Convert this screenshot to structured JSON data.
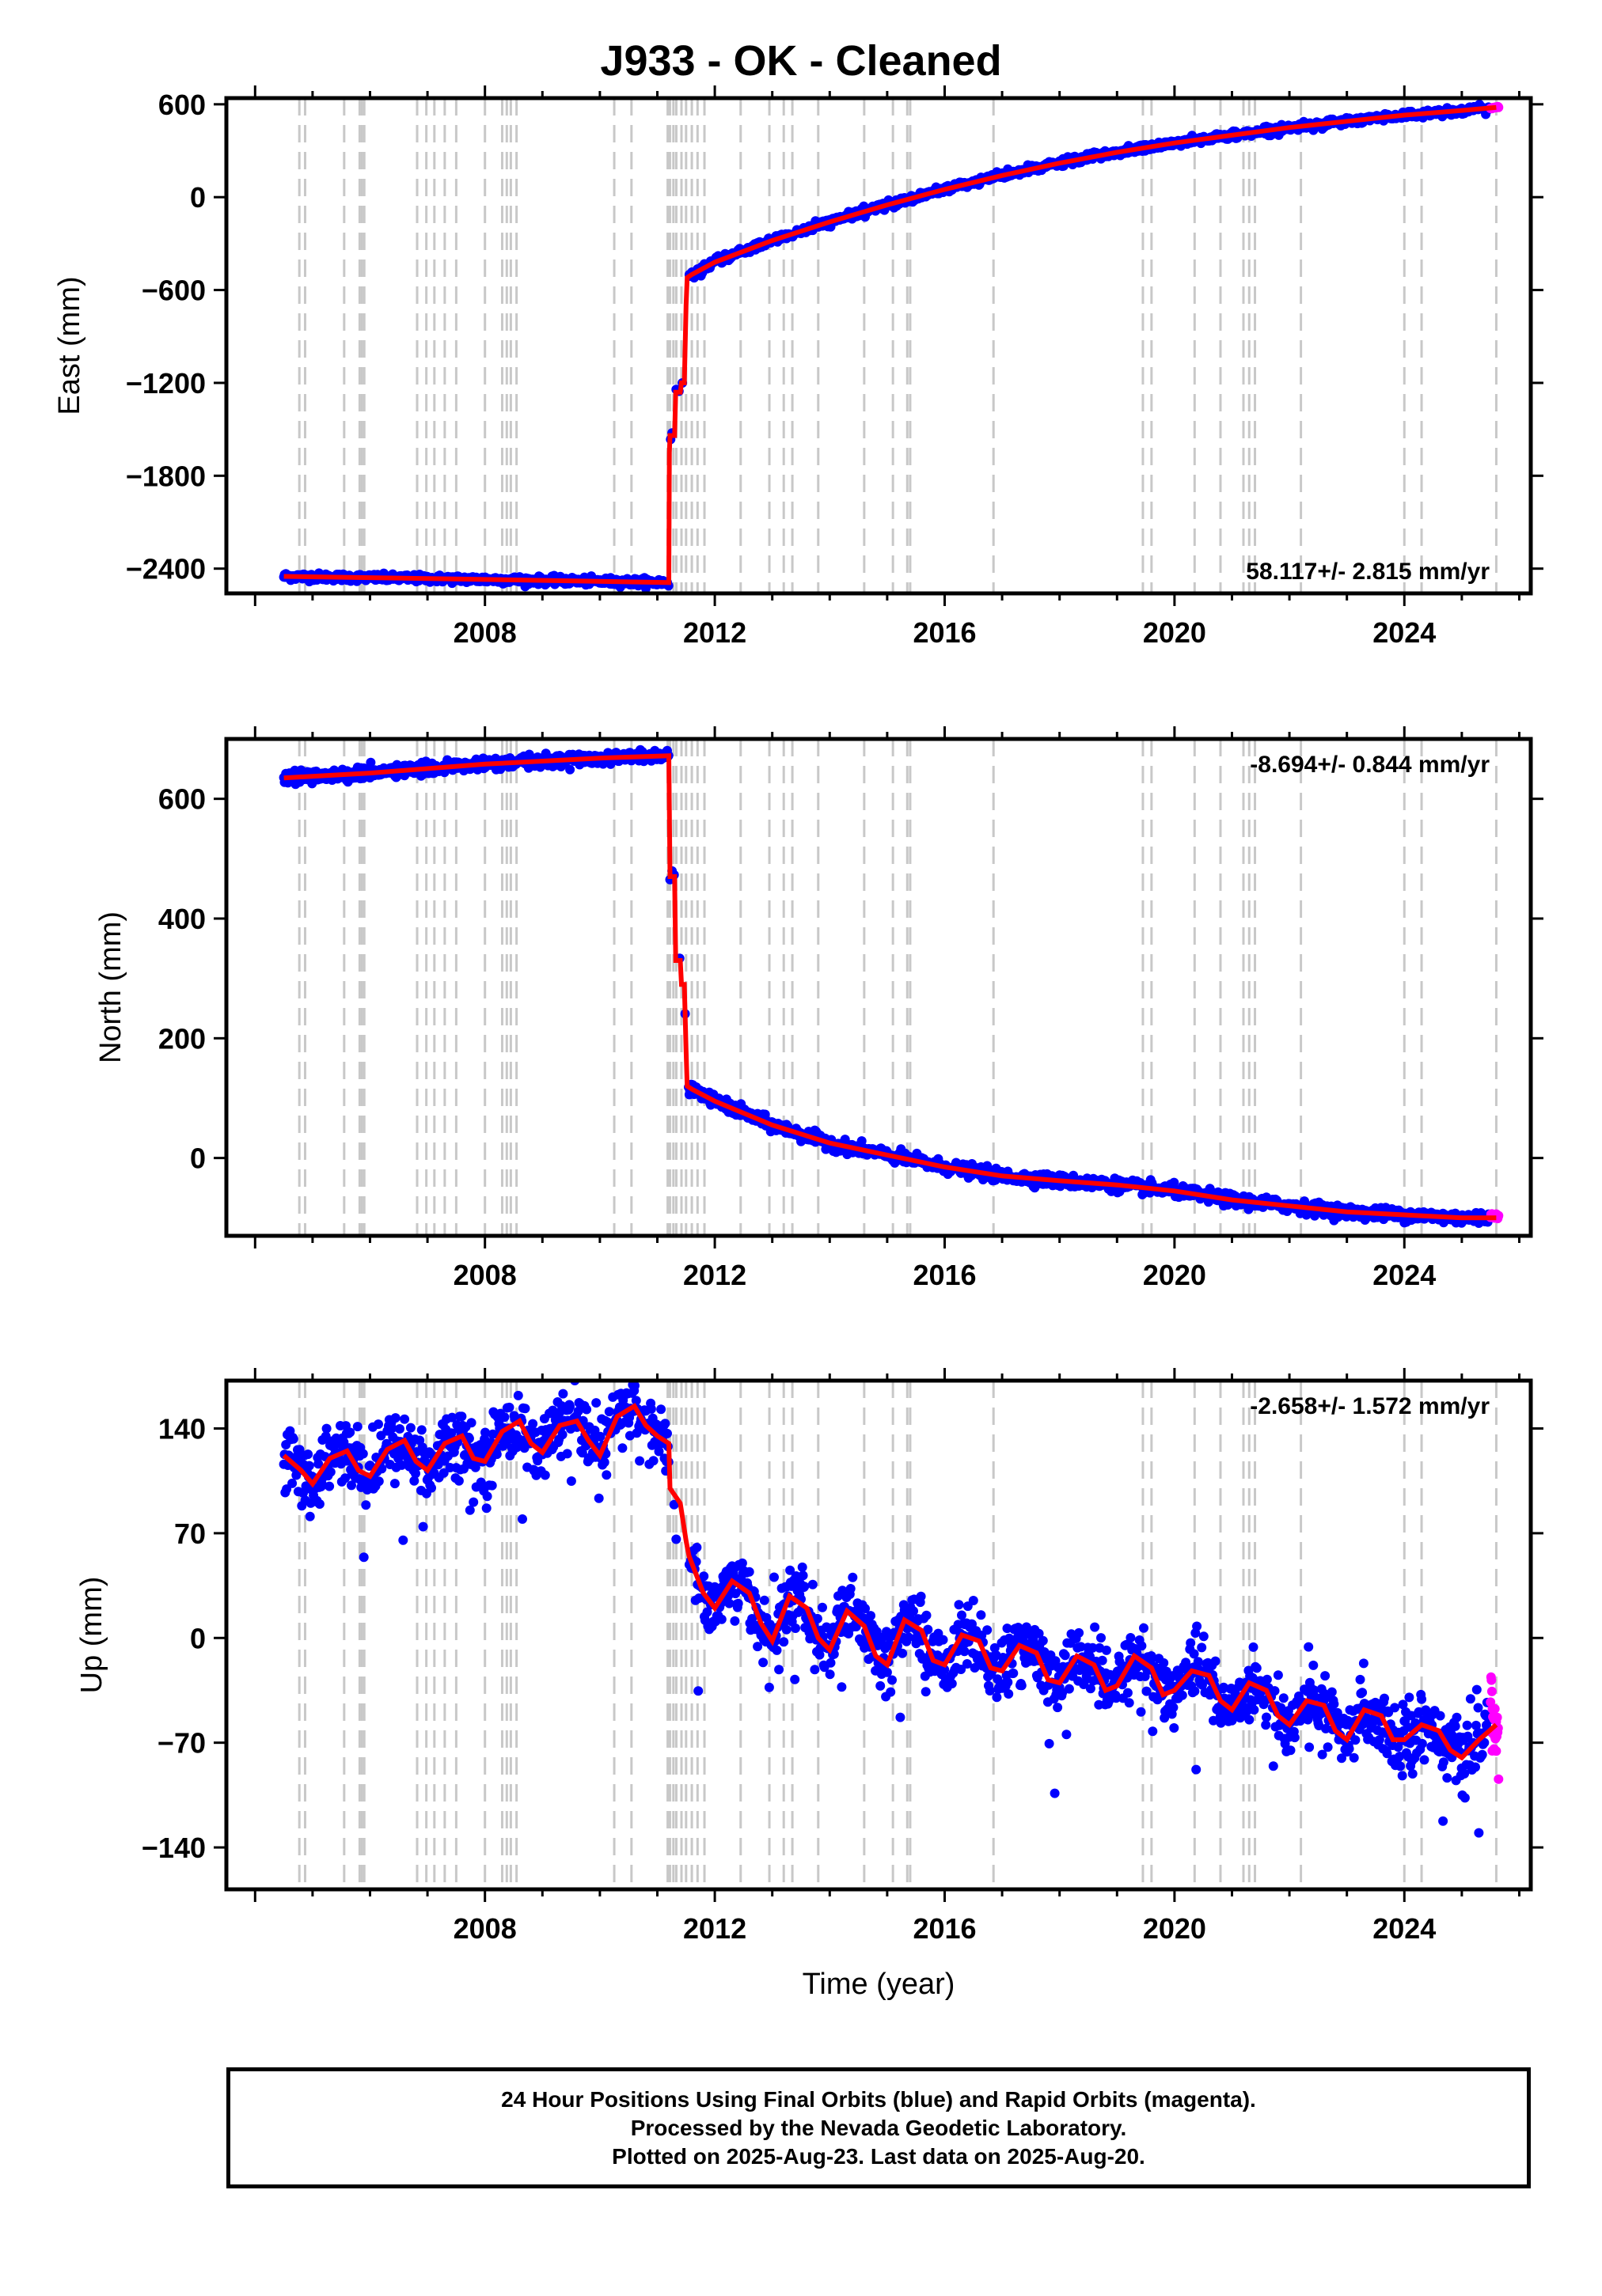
{
  "title": "J933  - OK - Cleaned",
  "colors": {
    "final_orbits": "#0000ff",
    "rapid_orbits": "#ff00ff",
    "model": "#ff0000",
    "events": "#c8c8c8"
  },
  "chart_data": [
    {
      "type": "scatter",
      "ylabel": "East (mm)",
      "xlabel": "",
      "xlim": [
        2003.5,
        2026.2
      ],
      "ylim": [
        -2560,
        640
      ],
      "yticks": [
        -2400,
        -1800,
        -1200,
        -600,
        0,
        600
      ],
      "xticks": [
        2008,
        2012,
        2016,
        2020,
        2024
      ],
      "rate": "58.117+/- 2.815 mm/yr",
      "series": [
        {
          "role": "model",
          "x": [
            2004.5,
            2008.0,
            2011.2,
            2011.21,
            2011.22,
            2011.3,
            2011.32,
            2011.4,
            2011.42,
            2011.47,
            2011.5,
            2011.52,
            2011.6,
            2012.0,
            2013.0,
            2014.0,
            2015.0,
            2016.0,
            2017.0,
            2018.0,
            2019.0,
            2020.0,
            2021.0,
            2022.0,
            2023.0,
            2024.0,
            2025.0,
            2025.6
          ],
          "y": [
            -2450,
            -2470,
            -2490,
            -1650,
            -1540,
            -1540,
            -1260,
            -1260,
            -1200,
            -1200,
            -700,
            -520,
            -500,
            -420,
            -280,
            -160,
            -50,
            50,
            140,
            220,
            290,
            350,
            400,
            450,
            490,
            530,
            560,
            580
          ]
        },
        {
          "role": "rapid",
          "x": [
            2025.5,
            2025.55,
            2025.6
          ],
          "y": [
            575,
            578,
            582
          ]
        }
      ]
    },
    {
      "type": "scatter",
      "ylabel": "North (mm)",
      "xlabel": "",
      "xlim": [
        2003.5,
        2026.2
      ],
      "ylim": [
        -130,
        700
      ],
      "yticks": [
        0,
        200,
        400,
        600
      ],
      "xticks": [
        2008,
        2012,
        2016,
        2020,
        2024
      ],
      "rate": "-8.694+/- 0.844 mm/yr",
      "series": [
        {
          "role": "model",
          "x": [
            2004.5,
            2006.0,
            2008.0,
            2010.0,
            2011.2,
            2011.21,
            2011.22,
            2011.3,
            2011.32,
            2011.4,
            2011.42,
            2011.47,
            2011.5,
            2011.52,
            2011.6,
            2012.0,
            2013.0,
            2014.0,
            2015.0,
            2016.0,
            2017.0,
            2018.0,
            2019.0,
            2020.0,
            2021.0,
            2022.0,
            2023.0,
            2024.0,
            2025.0,
            2025.6
          ],
          "y": [
            635,
            643,
            658,
            668,
            672,
            580,
            470,
            470,
            330,
            330,
            290,
            290,
            180,
            120,
            115,
            95,
            55,
            25,
            5,
            -15,
            -30,
            -38,
            -45,
            -55,
            -70,
            -80,
            -90,
            -95,
            -100,
            -100
          ]
        },
        {
          "role": "rapid",
          "x": [
            2025.5,
            2025.55,
            2025.6
          ],
          "y": [
            -95,
            -98,
            -96
          ]
        }
      ]
    },
    {
      "type": "scatter",
      "ylabel": "Up (mm)",
      "xlabel": "Time (year)",
      "xlim": [
        2003.5,
        2026.2
      ],
      "ylim": [
        -168,
        172
      ],
      "yticks": [
        -140,
        -70,
        0,
        70,
        140
      ],
      "xticks": [
        2008,
        2012,
        2016,
        2020,
        2024
      ],
      "rate": "-2.658+/- 1.572 mm/yr",
      "series": [
        {
          "role": "model",
          "x": [
            2004.5,
            2004.8,
            2005.0,
            2005.3,
            2005.6,
            2005.8,
            2006.0,
            2006.3,
            2006.6,
            2006.8,
            2007.0,
            2007.3,
            2007.6,
            2007.8,
            2008.0,
            2008.3,
            2008.6,
            2008.8,
            2009.0,
            2009.3,
            2009.6,
            2009.8,
            2010.0,
            2010.3,
            2010.6,
            2010.8,
            2011.0,
            2011.2,
            2011.22,
            2011.4,
            2011.5,
            2011.55,
            2011.8,
            2012.0,
            2012.3,
            2012.6,
            2012.8,
            2013.0,
            2013.3,
            2013.6,
            2013.8,
            2014.0,
            2014.3,
            2014.6,
            2014.8,
            2015.0,
            2015.3,
            2015.6,
            2015.8,
            2016.0,
            2016.3,
            2016.6,
            2016.8,
            2017.0,
            2017.3,
            2017.6,
            2017.8,
            2018.0,
            2018.3,
            2018.6,
            2018.8,
            2019.0,
            2019.3,
            2019.6,
            2019.8,
            2020.0,
            2020.3,
            2020.6,
            2020.8,
            2021.0,
            2021.3,
            2021.6,
            2021.8,
            2022.0,
            2022.3,
            2022.6,
            2022.8,
            2023.0,
            2023.3,
            2023.6,
            2023.8,
            2024.0,
            2024.3,
            2024.6,
            2024.8,
            2025.0,
            2025.3,
            2025.6
          ],
          "y": [
            122,
            112,
            103,
            120,
            125,
            112,
            108,
            126,
            132,
            118,
            112,
            130,
            135,
            120,
            118,
            138,
            145,
            130,
            124,
            142,
            145,
            132,
            122,
            148,
            155,
            142,
            135,
            130,
            100,
            90,
            65,
            55,
            30,
            20,
            38,
            30,
            10,
            -2,
            28,
            20,
            0,
            -8,
            18,
            8,
            -12,
            -18,
            12,
            5,
            -15,
            -18,
            2,
            -2,
            -20,
            -22,
            -5,
            -10,
            -28,
            -30,
            -12,
            -18,
            -35,
            -32,
            -12,
            -20,
            -38,
            -35,
            -22,
            -25,
            -42,
            -48,
            -30,
            -35,
            -52,
            -58,
            -42,
            -45,
            -62,
            -68,
            -48,
            -52,
            -68,
            -68,
            -58,
            -62,
            -75,
            -80,
            -68,
            -58
          ]
        },
        {
          "role": "rapid",
          "x": [
            2025.5,
            2025.53,
            2025.56,
            2025.6
          ],
          "y": [
            -45,
            -60,
            -55,
            -72
          ]
        }
      ]
    }
  ],
  "footer": {
    "line1": "24 Hour Positions Using Final Orbits (blue) and Rapid Orbits (magenta).",
    "line2": "Processed by the Nevada Geodetic Laboratory.",
    "line3": "Plotted on 2025-Aug-23. Last data on 2025-Aug-20."
  }
}
